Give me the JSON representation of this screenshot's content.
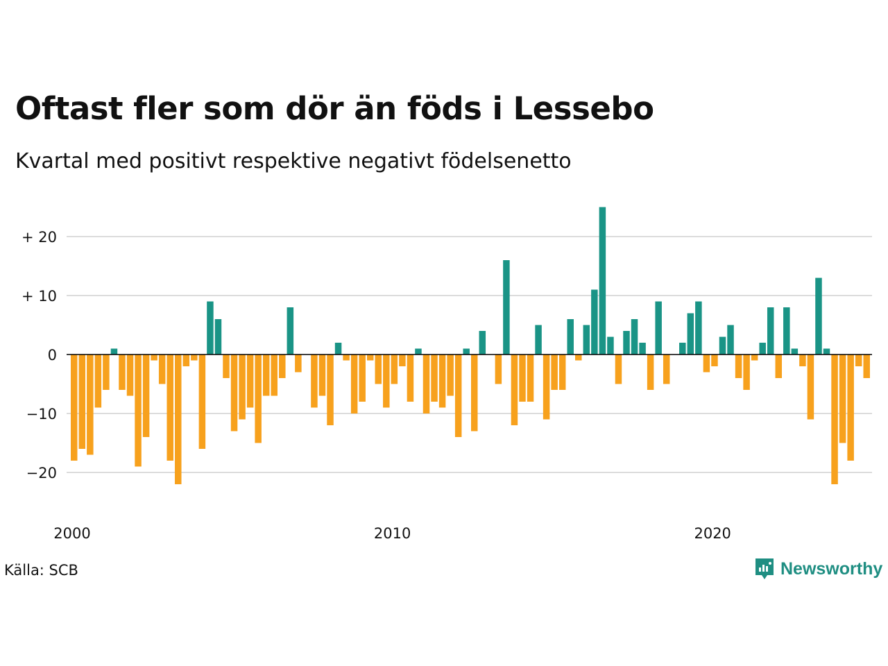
{
  "title": "Oftast fler som dör än föds i Lessebo",
  "subtitle": "Kvartal med positivt respektive negativt födelsenetto",
  "source": "Källa: SCB",
  "brand": "Newsworthy",
  "colors": {
    "positive": "#1a9486",
    "negative": "#f7a11d",
    "grid": "#dcdcdc",
    "zero": "#000000"
  },
  "chart_data": {
    "type": "bar",
    "x_start": "2000 Q1",
    "x_step": "quarter",
    "x_ticks": [
      "2000",
      "2010",
      "2020"
    ],
    "y_ticks": [
      20,
      10,
      0,
      -10,
      -20
    ],
    "y_tick_labels": [
      "+ 20",
      "+ 10",
      "0",
      "−10",
      "−20"
    ],
    "ylim": [
      -25,
      25
    ],
    "grid": true,
    "values": [
      -18,
      -16,
      -17,
      -9,
      -6,
      1,
      -6,
      -7,
      -19,
      -14,
      -1,
      -5,
      -18,
      -22,
      -2,
      -1,
      -16,
      9,
      6,
      -4,
      -13,
      -11,
      -9,
      -15,
      -7,
      -7,
      -4,
      8,
      -3,
      0,
      -9,
      -7,
      -12,
      2,
      -1,
      -10,
      -8,
      -1,
      -5,
      -9,
      -5,
      -2,
      -8,
      1,
      -10,
      -8,
      -9,
      -7,
      -14,
      1,
      -13,
      4,
      0,
      -5,
      16,
      -12,
      -8,
      -8,
      5,
      -11,
      -6,
      -6,
      6,
      -1,
      5,
      11,
      25,
      3,
      -5,
      4,
      6,
      2,
      -6,
      9,
      -5,
      0,
      2,
      7,
      9,
      -3,
      -2,
      3,
      5,
      -4,
      -6,
      -1,
      2,
      8,
      -4,
      8,
      1,
      -2,
      -11,
      13,
      1,
      -22,
      -15,
      -18,
      -2,
      -4
    ]
  }
}
